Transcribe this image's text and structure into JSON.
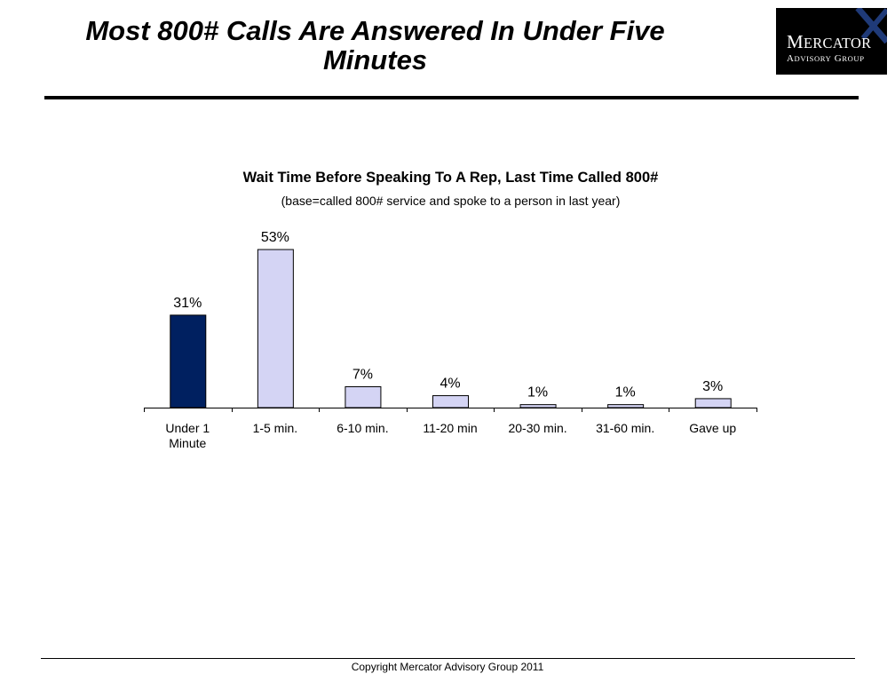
{
  "slide": {
    "title": "Most 800# Calls Are Answered In Under Five Minutes",
    "footer": "Copyright Mercator Advisory Group 2011"
  },
  "logo": {
    "name_line1": "Mercator",
    "name_line2": "Advisory Group",
    "colors": {
      "background": "#000000",
      "text": "#ffffff",
      "accent": "#1f3a78"
    }
  },
  "chart_data": {
    "type": "bar",
    "title": "Wait Time Before Speaking To A Rep, Last Time Called 800#",
    "subtitle": "(base=called 800# service and spoke to a person in last year)",
    "categories": [
      "Under 1 Minute",
      "1-5 min.",
      "6-10 min.",
      "11-20 min",
      "20-30 min.",
      "31-60 min.",
      "Gave up"
    ],
    "values": [
      31,
      53,
      7,
      4,
      1,
      1,
      3
    ],
    "value_labels": [
      "31%",
      "53%",
      "7%",
      "4%",
      "1%",
      "1%",
      "3%"
    ],
    "unit": "%",
    "ylim": [
      0,
      54
    ],
    "grid": false,
    "legend": "none",
    "colors": {
      "highlight": "#002060",
      "default": "#d4d4f4",
      "bar_stroke": "#000000",
      "axis": "#000000"
    },
    "highlight_index": 0
  }
}
